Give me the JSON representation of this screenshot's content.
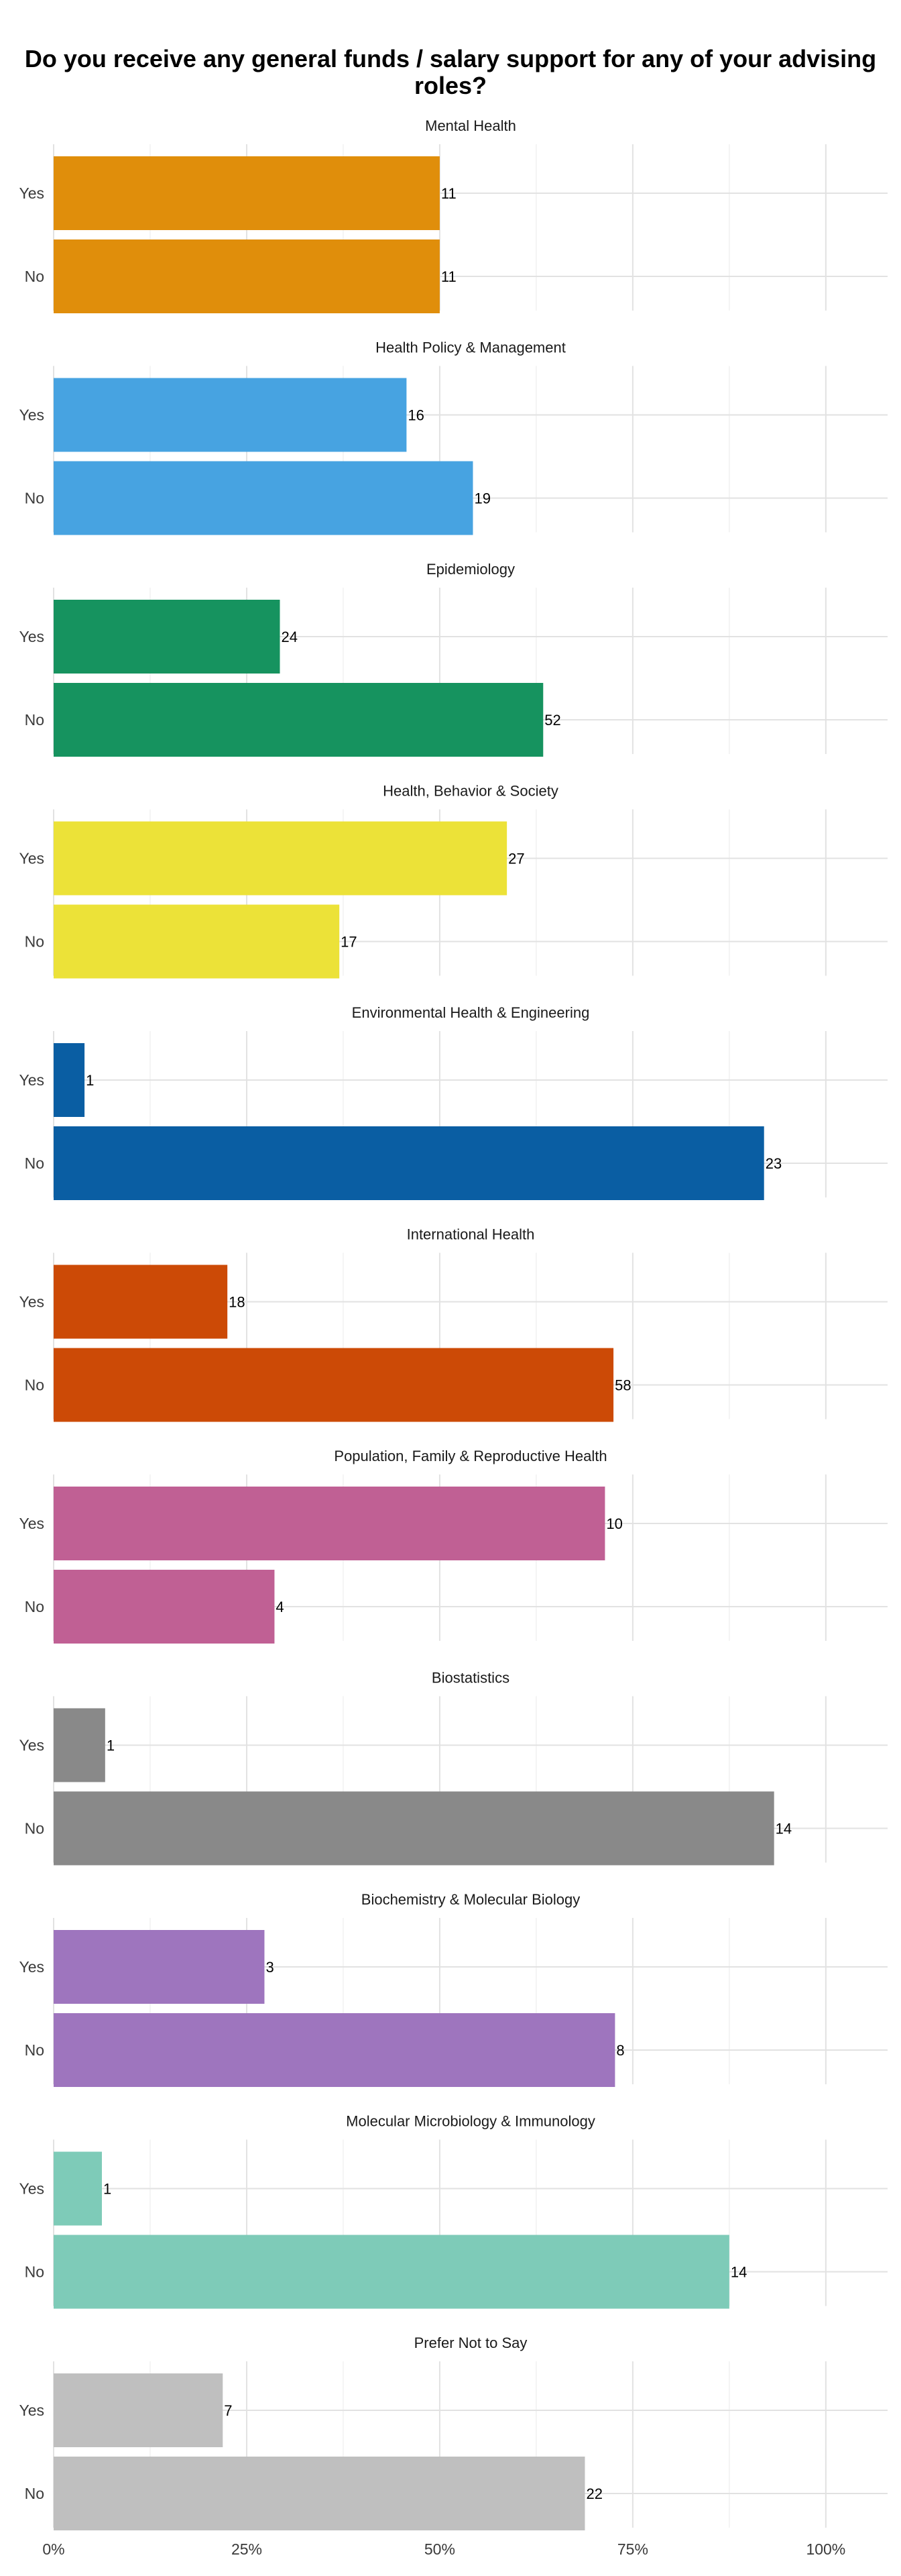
{
  "chart_data": {
    "type": "bar",
    "orientation": "horizontal",
    "title": "Do you receive any general funds / salary support for any of your advising roles?",
    "xlim": [
      0,
      1.08
    ],
    "x_ticks": [
      0,
      0.25,
      0.5,
      0.75,
      1.0
    ],
    "x_tick_labels": [
      "0%",
      "25%",
      "50%",
      "75%",
      "100%"
    ],
    "grid": true,
    "categories": [
      "Yes",
      "No"
    ],
    "facets": [
      {
        "name": "Mental Health",
        "color": "#E08E0B",
        "bars": [
          {
            "category": "Yes",
            "proportion": 0.5,
            "count": "11"
          },
          {
            "category": "No",
            "proportion": 0.5,
            "count": "11"
          }
        ]
      },
      {
        "name": "Health Policy & Management",
        "color": "#47A3E1",
        "bars": [
          {
            "category": "Yes",
            "proportion": 0.457,
            "count": "16"
          },
          {
            "category": "No",
            "proportion": 0.543,
            "count": "19"
          }
        ]
      },
      {
        "name": "Epidemiology",
        "color": "#16935F",
        "bars": [
          {
            "category": "Yes",
            "proportion": 0.293,
            "count": "24"
          },
          {
            "category": "No",
            "proportion": 0.634,
            "count": "52"
          }
        ]
      },
      {
        "name": "Health, Behavior & Society",
        "color": "#ECE238",
        "bars": [
          {
            "category": "Yes",
            "proportion": 0.587,
            "count": "27"
          },
          {
            "category": "No",
            "proportion": 0.37,
            "count": "17"
          }
        ]
      },
      {
        "name": "Environmental Health & Engineering",
        "color": "#0A5EA3",
        "bars": [
          {
            "category": "Yes",
            "proportion": 0.04,
            "count": "1"
          },
          {
            "category": "No",
            "proportion": 0.92,
            "count": "23"
          }
        ]
      },
      {
        "name": "International Health",
        "color": "#CC4A06",
        "bars": [
          {
            "category": "Yes",
            "proportion": 0.225,
            "count": "18"
          },
          {
            "category": "No",
            "proportion": 0.725,
            "count": "58"
          }
        ]
      },
      {
        "name": "Population, Family & Reproductive Health",
        "color": "#C06094",
        "bars": [
          {
            "category": "Yes",
            "proportion": 0.714,
            "count": "10"
          },
          {
            "category": "No",
            "proportion": 0.286,
            "count": "4"
          }
        ]
      },
      {
        "name": "Biostatistics",
        "color": "#898989",
        "bars": [
          {
            "category": "Yes",
            "proportion": 0.0667,
            "count": "1"
          },
          {
            "category": "No",
            "proportion": 0.933,
            "count": "14"
          }
        ]
      },
      {
        "name": "Biochemistry & Molecular Biology",
        "color": "#9E75BE",
        "bars": [
          {
            "category": "Yes",
            "proportion": 0.273,
            "count": "3"
          },
          {
            "category": "No",
            "proportion": 0.727,
            "count": "8"
          }
        ]
      },
      {
        "name": "Molecular Microbiology & Immunology",
        "color": "#7ECBB8",
        "bars": [
          {
            "category": "Yes",
            "proportion": 0.0625,
            "count": "1"
          },
          {
            "category": "No",
            "proportion": 0.875,
            "count": "14"
          }
        ]
      },
      {
        "name": "Prefer Not to Say",
        "color": "#BFBFBF",
        "bars": [
          {
            "category": "Yes",
            "proportion": 0.219,
            "count": "7"
          },
          {
            "category": "No",
            "proportion": 0.688,
            "count": "22"
          }
        ]
      }
    ]
  }
}
